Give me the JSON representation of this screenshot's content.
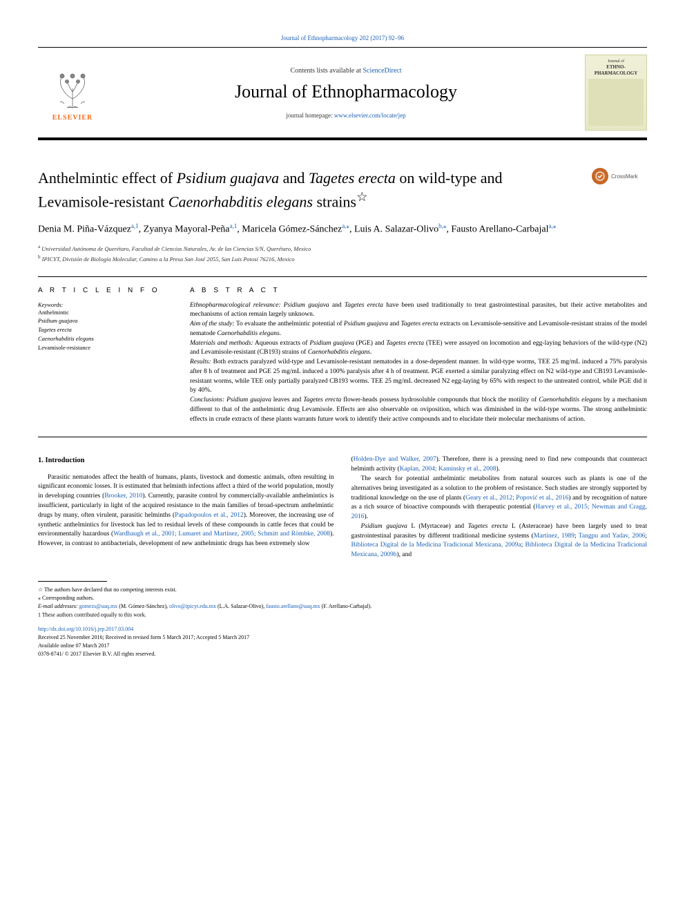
{
  "top_citation": "Journal of Ethnopharmacology 202 (2017) 92–96",
  "header": {
    "contents_prefix": "Contents lists available at ",
    "contents_link": "ScienceDirect",
    "journal_title": "Journal of Ethnopharmacology",
    "homepage_prefix": "journal homepage: ",
    "homepage_link": "www.elsevier.com/locate/jep",
    "publisher_word": "ELSEVIER",
    "cover_line1": "Journal of",
    "cover_line2": "ETHNO-",
    "cover_line3": "PHARMACOLOGY"
  },
  "crossmark_label": "CrossMark",
  "article_title_parts": {
    "p1": "Anthelmintic effect of ",
    "i1": "Psidium guajava",
    "p2": " and ",
    "i2": "Tagetes erecta",
    "p3": " on wild-type and Levamisole-resistant ",
    "i3": "Caenorhabditis elegans",
    "p4": " strains",
    "star": "☆"
  },
  "authors_html": "Denia M. Piña-Vázquez<sup>a,1</sup>, Zyanya Mayoral-Peña<sup>a,1</sup>, Maricela Gómez-Sánchez<sup>a,⁎</sup>, Luis A. Salazar-Olivo<sup>b,⁎</sup>, Fausto Arellano-Carbajal<sup>a,⁎</sup>",
  "affiliations": {
    "a_sup": "a",
    "a_text": " Universidad Autónoma de Querétaro, Facultad de Ciencias Naturales, Av. de las Ciencias S/N, Querétaro, Mexico",
    "b_sup": "b",
    "b_text": " IPICYT, División de Biología Molecular, Camino a la Presa San José 2055, San Luis Potosí 76216, Mexico"
  },
  "article_info_label": "A R T I C L E  I N F O",
  "abstract_label": "A B S T R A C T",
  "keywords": {
    "label": "Keywords:",
    "items": [
      {
        "text": "Anthelmintic",
        "italic": false
      },
      {
        "text": "Psidium guajava",
        "italic": true
      },
      {
        "text": "Tagetes erecta",
        "italic": true
      },
      {
        "text": "Caenorhabditis elegans",
        "italic": true
      },
      {
        "text": "Levamisole-resistance",
        "italic": false
      }
    ]
  },
  "abstract_paragraphs": [
    "<em>Ethnopharmacological relevance: Psidium guajava</em> and <em>Tagetes erecta</em> have been used traditionally to treat gastrointestinal parasites, but their active metabolites and mechanisms of action remain largely unknown.",
    "<em>Aim of the study:</em> To evaluate the anthelmintic potential of <em>Psidium guajava</em> and <em>Tagetes erecta</em> extracts on Levamisole-sensitive and Levamisole-resistant strains of the model nematode <em>Caenorhabditis elegans</em>.",
    "<em>Materials and methods:</em> Aqueous extracts of <em>Psidium guajava</em> (PGE) and <em>Tagetes erecta</em> (TEE) were assayed on locomotion and egg-laying behaviors of the wild-type (N2) and Levamisole-resistant (CB193) strains of <em>Caenorhabditis elegans</em>.",
    "<em>Results:</em> Both extracts paralyzed wild-type and Levamisole-resistant nematodes in a dose-dependent manner. In wild-type worms, TEE 25 mg/mL induced a 75% paralysis after 8 h of treatment and PGE 25 mg/mL induced a 100% paralysis after 4 h of treatment. PGE exerted a similar paralyzing effect on N2 wild-type and CB193 Levamisole-resistant worms, while TEE only partially paralyzed CB193 worms. TEE 25 mg/mL decreased N2 egg-laying by 65% with respect to the untreated control, while PGE did it by 40%.",
    "<em>Conclusions: Psidium guajava</em> leaves and <em>Tagetes erecta</em> flower-heads possess hydrosoluble compounds that block the motility of <em>Caenorhabditis elegans</em> by a mechanism different to that of the anthelmintic drug Levamisole. Effects are also observable on oviposition, which was diminished in the wild-type worms. The strong anthelmintic effects in crude extracts of these plants warrants future work to identify their active compounds and to elucidate their molecular mechanisms of action."
  ],
  "section1_heading": "1. Introduction",
  "col_left_paras": [
    "Parasitic nematodes affect the health of humans, plants, livestock and domestic animals, often resulting in significant economic losses. It is estimated that helminth infections affect a third of the world population, mostly in developing countries (<a>Brooker, 2010</a>). Currently, parasite control by commercially-available anthelmintics is insufficient, particularly in light of the acquired resistance to the main families of broad-spectrum anthelmintic drugs by many, often virulent, parasitic helminths (<a>Papadopoulos et al., 2012</a>). Moreover, the increasing use of synthetic anthelmintics for livestock has led to residual levels of these compounds in cattle feces that could be environmentally hazardous (<a>Wardhaugh et al., 2001; Lumaret and Martínez, 2005; Schmitt and Römbke, 2008</a>). However, in contrast to antibacterials, development of new anthelmintic drugs has been extremely slow"
  ],
  "col_right_paras": [
    "(<a>Holden-Dye and Walker, 2007</a>). Therefore, there is a pressing need to find new compounds that counteract helminth activity (<a>Kaplan, 2004; Kaminsky et al., 2008</a>).",
    "The search for potential anthelmintic metabolites from natural sources such as plants is one of the alternatives being investigated as a solution to the problem of resistance. Such studies are strongly supported by traditional knowledge on the use of plants (<a>Geary et al., 2012; Popović et al., 2016</a>) and by recognition of nature as a rich source of bioactive compounds with therapeutic potential (<a>Harvey et al., 2015; Newman and Cragg, 2016</a>).",
    "<em>Psidium guajava</em> L (Myrtaceae) and <em>Tagetes erecta</em> L (Asteraceae) have been largely used to treat gastrointestinal parasites by different traditional medicine systems (<a>Martínez, 1989</a>; <a>Tangpu and Yadav, 2006</a>; <a>Biblioteca Digital de la Medicina Tradicional Mexicana, 2009a</a>; <a>Biblioteca Digital de la Medicina Tradicional Mexicana, 2009b</a>), and"
  ],
  "footnotes": {
    "star": "☆ The authors have declared that no competing interests exist.",
    "corr": "⁎ Corresponding authors.",
    "emails_label": "E-mail addresses: ",
    "email1": "gomezs@uaq.mx",
    "email1_who": " (M. Gómez-Sánchez), ",
    "email2": "olivo@ipicyt.edu.mx",
    "email2_who": " (L.A. Salazar-Olivo), ",
    "email3": "fausto.arellano@uaq.mx",
    "email3_who": " (F. Arellano-Carbajal).",
    "equal": "1 These authors contributed equally to this work."
  },
  "doi": {
    "link": "http://dx.doi.org/10.1016/j.jep.2017.03.004",
    "received": "Received 25 November 2016; Received in revised form 5 March 2017; Accepted 5 March 2017",
    "available": "Available online 07 March 2017",
    "copyright": "0378-8741/ © 2017 Elsevier B.V. All rights reserved."
  },
  "colors": {
    "link": "#1a5fb4",
    "elsevier_orange": "#f26b1d",
    "crossmark_orange": "#d97a3a"
  }
}
